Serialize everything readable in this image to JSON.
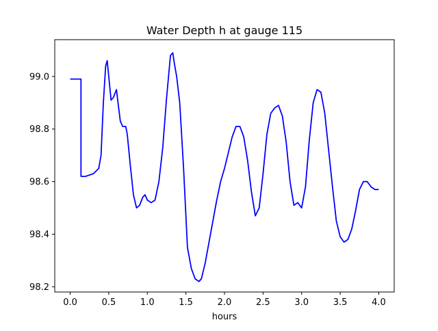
{
  "chart_data": {
    "type": "line",
    "title": "Water Depth h at gauge 115",
    "xlabel": "hours",
    "ylabel": "",
    "xlim": [
      -0.2,
      4.2
    ],
    "ylim": [
      98.18,
      99.14
    ],
    "xticks": [
      0.0,
      0.5,
      1.0,
      1.5,
      2.0,
      2.5,
      3.0,
      3.5,
      4.0
    ],
    "xtick_labels": [
      "0.0",
      "0.5",
      "1.0",
      "1.5",
      "2.0",
      "2.5",
      "3.0",
      "3.5",
      "4.0"
    ],
    "yticks": [
      98.2,
      98.4,
      98.6,
      98.8,
      99.0
    ],
    "ytick_labels": [
      "98.2",
      "98.4",
      "98.6",
      "98.8",
      "99.0"
    ],
    "grid": false,
    "legend": "none",
    "series": [
      {
        "color": "#0000ff",
        "x": [
          0.0,
          0.14,
          0.14,
          0.2,
          0.3,
          0.37,
          0.4,
          0.43,
          0.46,
          0.48,
          0.5,
          0.53,
          0.56,
          0.6,
          0.62,
          0.65,
          0.68,
          0.72,
          0.74,
          0.78,
          0.82,
          0.86,
          0.9,
          0.94,
          0.97,
          1.0,
          1.05,
          1.1,
          1.15,
          1.2,
          1.25,
          1.3,
          1.33,
          1.35,
          1.38,
          1.42,
          1.47,
          1.52,
          1.57,
          1.62,
          1.67,
          1.7,
          1.75,
          1.8,
          1.85,
          1.9,
          1.95,
          2.0,
          2.05,
          2.1,
          2.15,
          2.2,
          2.25,
          2.3,
          2.35,
          2.4,
          2.45,
          2.5,
          2.55,
          2.6,
          2.65,
          2.7,
          2.75,
          2.8,
          2.85,
          2.9,
          2.95,
          3.0,
          3.05,
          3.1,
          3.15,
          3.2,
          3.25,
          3.3,
          3.35,
          3.4,
          3.45,
          3.5,
          3.55,
          3.6,
          3.65,
          3.7,
          3.75,
          3.8,
          3.85,
          3.9,
          3.95,
          4.0
        ],
        "y": [
          98.99,
          98.99,
          98.62,
          98.62,
          98.63,
          98.65,
          98.7,
          98.9,
          99.04,
          99.06,
          99.0,
          98.91,
          98.92,
          98.95,
          98.9,
          98.83,
          98.81,
          98.81,
          98.78,
          98.66,
          98.55,
          98.5,
          98.51,
          98.54,
          98.55,
          98.53,
          98.52,
          98.53,
          98.6,
          98.73,
          98.92,
          99.08,
          99.09,
          99.05,
          99.0,
          98.9,
          98.65,
          98.35,
          98.27,
          98.23,
          98.22,
          98.23,
          98.29,
          98.37,
          98.45,
          98.53,
          98.6,
          98.65,
          98.71,
          98.77,
          98.81,
          98.81,
          98.77,
          98.68,
          98.56,
          98.47,
          98.5,
          98.63,
          98.78,
          98.86,
          98.88,
          98.89,
          98.85,
          98.75,
          98.6,
          98.51,
          98.52,
          98.5,
          98.58,
          98.76,
          98.9,
          98.95,
          98.94,
          98.86,
          98.72,
          98.58,
          98.45,
          98.39,
          98.37,
          98.38,
          98.42,
          98.49,
          98.57,
          98.6,
          98.6,
          98.58,
          98.57,
          98.57
        ]
      }
    ]
  }
}
